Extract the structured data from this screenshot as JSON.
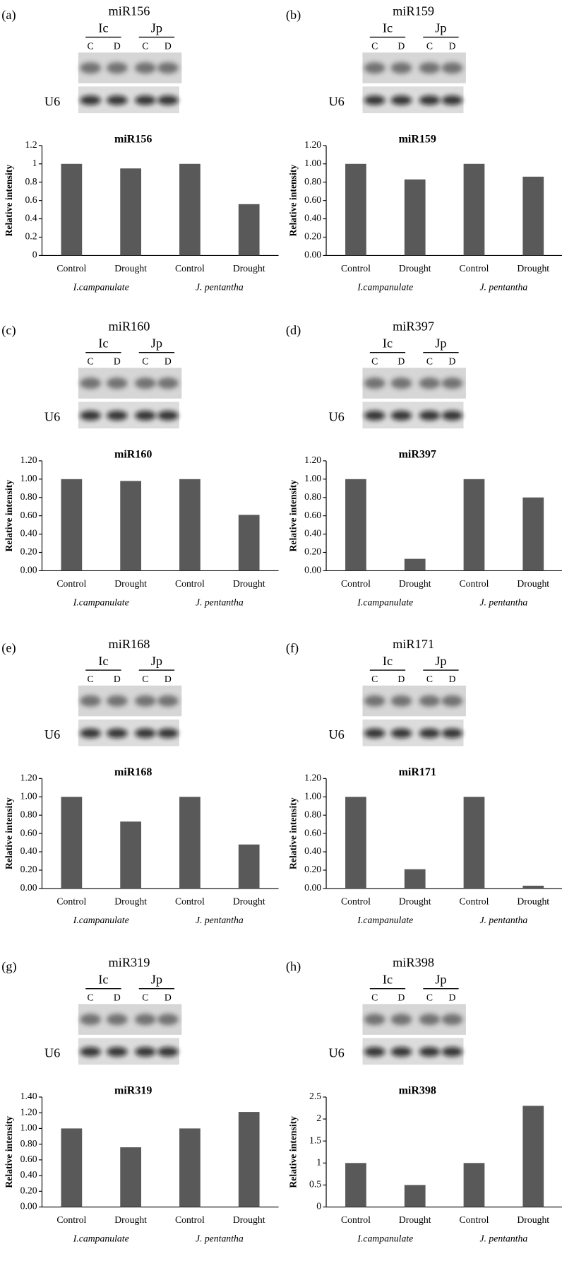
{
  "chart_data": [
    {
      "type": "bar",
      "panel": "(a)",
      "blot_title": "miR156",
      "blot_groups": [
        "Ic",
        "Jp"
      ],
      "lanes": [
        "C",
        "D",
        "C",
        "D"
      ],
      "loading_control": "U6",
      "title": "miR156",
      "y_label": "Relative intensity",
      "categories": [
        "Control",
        "Drought",
        "Control",
        "Drought"
      ],
      "groups": [
        "I.campanulate",
        "J. pentantha"
      ],
      "values": [
        1,
        0.95,
        1,
        0.56
      ],
      "color": "#595959",
      "ylim": [
        0,
        1.2
      ],
      "yticks": [
        0,
        0.2,
        0.4,
        0.6,
        0.8,
        1,
        1.2
      ]
    },
    {
      "type": "bar",
      "panel": "(b)",
      "blot_title": "miR159",
      "blot_groups": [
        "Ic",
        "Jp"
      ],
      "lanes": [
        "C",
        "D",
        "C",
        "D"
      ],
      "loading_control": "U6",
      "title": "miR159",
      "y_label": "Relative intensity",
      "categories": [
        "Control",
        "Drought",
        "Control",
        "Drought"
      ],
      "groups": [
        "I.campanulate",
        "J. pentantha"
      ],
      "values": [
        1.0,
        0.83,
        1.0,
        0.86
      ],
      "color": "#595959",
      "ylim": [
        0,
        1.2
      ],
      "yticks": [
        {
          "value": 0,
          "label": "0.00"
        },
        {
          "value": 0.2,
          "label": "0.20"
        },
        {
          "value": 0.4,
          "label": "0.40"
        },
        {
          "value": 0.6,
          "label": "0.60"
        },
        {
          "value": 0.8,
          "label": "0.80"
        },
        {
          "value": 1,
          "label": "1.00"
        },
        {
          "value": 1.2,
          "label": "1.20"
        }
      ]
    },
    {
      "type": "bar",
      "panel": "(c)",
      "blot_title": "miR160",
      "blot_groups": [
        "Ic",
        "Jp"
      ],
      "lanes": [
        "C",
        "D",
        "C",
        "D"
      ],
      "loading_control": "U6",
      "title": "miR160",
      "y_label": "Relative intensity",
      "categories": [
        "Control",
        "Drought",
        "Control",
        "Drought"
      ],
      "groups": [
        "I.campanulate",
        "J. pentantha"
      ],
      "values": [
        1.0,
        0.98,
        1.0,
        0.61
      ],
      "color": "#595959",
      "ylim": [
        0,
        1.2
      ],
      "yticks": [
        {
          "value": 0,
          "label": "0.00"
        },
        {
          "value": 0.2,
          "label": "0.20"
        },
        {
          "value": 0.4,
          "label": "0.40"
        },
        {
          "value": 0.6,
          "label": "0.60"
        },
        {
          "value": 0.8,
          "label": "0.80"
        },
        {
          "value": 1,
          "label": "1.00"
        },
        {
          "value": 1.2,
          "label": "1.20"
        }
      ]
    },
    {
      "type": "bar",
      "panel": "(d)",
      "blot_title": "miR397",
      "blot_groups": [
        "Ic",
        "Jp"
      ],
      "lanes": [
        "C",
        "D",
        "C",
        "D"
      ],
      "loading_control": "U6",
      "title": "miR397",
      "y_label": "Relative intensity",
      "categories": [
        "Control",
        "Drought",
        "Control",
        "Drought"
      ],
      "groups": [
        "I.campanulate",
        "J. pentantha"
      ],
      "values": [
        1.0,
        0.13,
        1.0,
        0.8
      ],
      "color": "#595959",
      "ylim": [
        0,
        1.2
      ],
      "yticks": [
        {
          "value": 0,
          "label": "0.00"
        },
        {
          "value": 0.2,
          "label": "0.20"
        },
        {
          "value": 0.4,
          "label": "0.40"
        },
        {
          "value": 0.6,
          "label": "0.60"
        },
        {
          "value": 0.8,
          "label": "0.80"
        },
        {
          "value": 1,
          "label": "1.00"
        },
        {
          "value": 1.2,
          "label": "1.20"
        }
      ]
    },
    {
      "type": "bar",
      "panel": "(e)",
      "blot_title": "miR168",
      "blot_groups": [
        "Ic",
        "Jp"
      ],
      "lanes": [
        "C",
        "D",
        "C",
        "D"
      ],
      "loading_control": "U6",
      "title": "miR168",
      "y_label": "Relative intensity",
      "categories": [
        "Control",
        "Drought",
        "Control",
        "Drought"
      ],
      "groups": [
        "I.campanulate",
        "J. pentantha"
      ],
      "values": [
        1.0,
        0.73,
        1.0,
        0.48
      ],
      "color": "#595959",
      "ylim": [
        0,
        1.2
      ],
      "yticks": [
        {
          "value": 0,
          "label": "0.00"
        },
        {
          "value": 0.2,
          "label": "0.20"
        },
        {
          "value": 0.4,
          "label": "0.40"
        },
        {
          "value": 0.6,
          "label": "0.60"
        },
        {
          "value": 0.8,
          "label": "0.80"
        },
        {
          "value": 1,
          "label": "1.00"
        },
        {
          "value": 1.2,
          "label": "1.20"
        }
      ]
    },
    {
      "type": "bar",
      "panel": "(f)",
      "blot_title": "miR171",
      "blot_groups": [
        "Ic",
        "Jp"
      ],
      "lanes": [
        "C",
        "D",
        "C",
        "D"
      ],
      "loading_control": "U6",
      "title": "miR171",
      "y_label": "Relative intensity",
      "categories": [
        "Control",
        "Drought",
        "Control",
        "Drought"
      ],
      "groups": [
        "I.campanulate",
        "J. pentantha"
      ],
      "values": [
        1.0,
        0.21,
        1.0,
        0.03
      ],
      "color": "#595959",
      "ylim": [
        0,
        1.2
      ],
      "yticks": [
        {
          "value": 0,
          "label": "0.00"
        },
        {
          "value": 0.2,
          "label": "0.20"
        },
        {
          "value": 0.4,
          "label": "0.40"
        },
        {
          "value": 0.6,
          "label": "0.60"
        },
        {
          "value": 0.8,
          "label": "0.80"
        },
        {
          "value": 1,
          "label": "1.00"
        },
        {
          "value": 1.2,
          "label": "1.20"
        }
      ]
    },
    {
      "type": "bar",
      "panel": "(g)",
      "blot_title": "miR319",
      "blot_groups": [
        "Ic",
        "Jp"
      ],
      "lanes": [
        "C",
        "D",
        "C",
        "D"
      ],
      "loading_control": "U6",
      "title": "miR319",
      "y_label": "Relative intensity",
      "categories": [
        "Control",
        "Drought",
        "Control",
        "Drought"
      ],
      "groups": [
        "I.campanulate",
        "J. pentantha"
      ],
      "values": [
        1.0,
        0.76,
        1.0,
        1.21
      ],
      "color": "#595959",
      "ylim": [
        0,
        1.4
      ],
      "yticks": [
        {
          "value": 0,
          "label": "0.00"
        },
        {
          "value": 0.2,
          "label": "0.20"
        },
        {
          "value": 0.4,
          "label": "0.40"
        },
        {
          "value": 0.6,
          "label": "0.60"
        },
        {
          "value": 0.8,
          "label": "0.80"
        },
        {
          "value": 1,
          "label": "1.00"
        },
        {
          "value": 1.2,
          "label": "1.20"
        },
        {
          "value": 1.4,
          "label": "1.40"
        }
      ]
    },
    {
      "type": "bar",
      "panel": "(h)",
      "blot_title": "miR398",
      "blot_groups": [
        "Ic",
        "Jp"
      ],
      "lanes": [
        "C",
        "D",
        "C",
        "D"
      ],
      "loading_control": "U6",
      "title": "miR398",
      "y_label": "Relative intensity",
      "categories": [
        "Control",
        "Drought",
        "Control",
        "Drought"
      ],
      "groups": [
        "I.campanulate",
        "J. pentantha"
      ],
      "values": [
        1,
        0.5,
        1,
        2.3
      ],
      "color": "#595959",
      "ylim": [
        0,
        2.5
      ],
      "yticks": [
        0,
        0.5,
        1,
        1.5,
        2,
        2.5
      ]
    }
  ]
}
